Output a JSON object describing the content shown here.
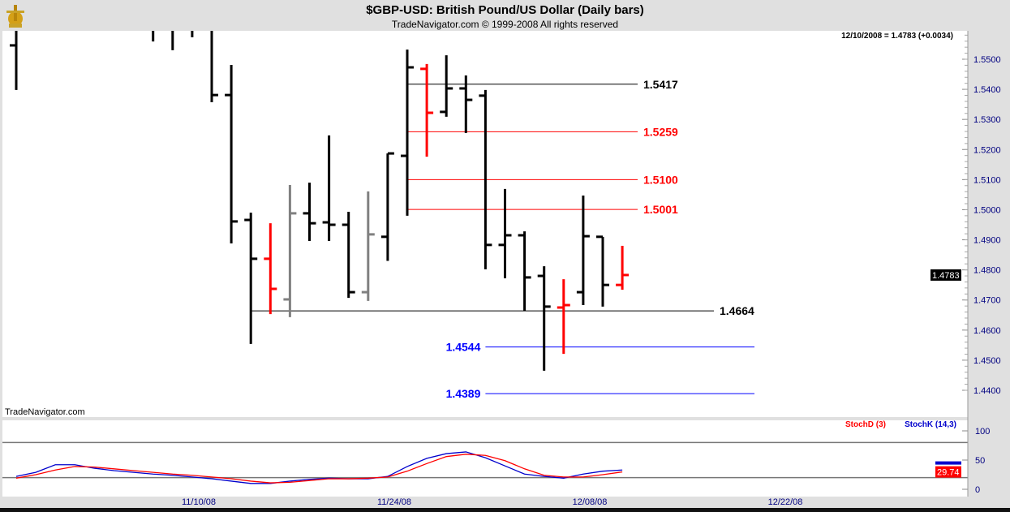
{
  "header": {
    "title": "$GBP-USD:  British Pound/US Dollar  (Daily bars)",
    "subtitle": "TradeNavigator.com © 1999-2008 All rights reserved",
    "last_quote": "12/10/2008 = 1.4783 (+0.0034)",
    "watermark": "TradeNavigator.com"
  },
  "chart_data": [
    {
      "type": "ohlc",
      "title": "$GBP-USD:  British Pound/US Dollar  (Daily bars)",
      "ylim": [
        1.435,
        1.5595
      ],
      "y_ticks": [
        "1.5500",
        "1.5400",
        "1.5300",
        "1.5200",
        "1.5100",
        "1.5000",
        "1.4900",
        "1.4800",
        "1.4700",
        "1.4600",
        "1.4500",
        "1.4400"
      ],
      "x_ticks": [
        {
          "label": "11/10/08",
          "bar": 10
        },
        {
          "label": "11/24/08",
          "bar": 20
        },
        {
          "label": "12/08/08",
          "bar": 30
        },
        {
          "label": "12/22/08",
          "bar": 40
        }
      ],
      "current_price": "1.4783",
      "colors": {
        "up": "#000000",
        "down": "#ff0000",
        "neutral": "#808080",
        "axis_text": "#000080"
      },
      "bars": [
        {
          "o": 1.5546,
          "h": 1.562,
          "l": 1.5398,
          "c": null,
          "color": "#000000"
        },
        null,
        null,
        null,
        null,
        null,
        null,
        {
          "o": null,
          "h": 1.562,
          "l": 1.5559,
          "c": null,
          "color": "#000000"
        },
        {
          "o": null,
          "h": 1.562,
          "l": 1.553,
          "c": null,
          "color": "#000000"
        },
        {
          "o": null,
          "h": 1.562,
          "l": 1.5573,
          "c": null,
          "color": "#000000"
        },
        {
          "o": null,
          "h": 1.562,
          "l": 1.5357,
          "c": 1.5381,
          "color": "#000000"
        },
        {
          "o": 1.5381,
          "h": 1.5481,
          "l": 1.4888,
          "c": 1.4961,
          "color": "#000000"
        },
        {
          "o": 1.4966,
          "h": 1.499,
          "l": 1.4554,
          "c": 1.4837,
          "color": "#000000"
        },
        {
          "o": 1.4837,
          "h": 1.4955,
          "l": 1.4653,
          "c": 1.4737,
          "color": "#ff0000"
        },
        {
          "o": 1.4702,
          "h": 1.5082,
          "l": 1.4643,
          "c": 1.4988,
          "color": "#808080"
        },
        {
          "o": 1.4988,
          "h": 1.509,
          "l": 1.4896,
          "c": 1.4955,
          "color": "#000000"
        },
        {
          "o": 1.4958,
          "h": 1.5247,
          "l": 1.4896,
          "c": 1.495,
          "color": "#000000"
        },
        {
          "o": 1.495,
          "h": 1.4993,
          "l": 1.4707,
          "c": 1.4726,
          "color": "#000000"
        },
        {
          "o": 1.4726,
          "h": 1.5061,
          "l": 1.4697,
          "c": 1.4918,
          "color": "#808080"
        },
        {
          "o": 1.491,
          "h": 1.5187,
          "l": 1.483,
          "c": 1.5187,
          "color": "#000000"
        },
        {
          "o": 1.5179,
          "h": 1.5532,
          "l": 1.498,
          "c": 1.5473,
          "color": "#000000"
        },
        {
          "o": 1.5468,
          "h": 1.5484,
          "l": 1.5176,
          "c": 1.5322,
          "color": "#ff0000"
        },
        {
          "o": 1.5325,
          "h": 1.5513,
          "l": 1.5309,
          "c": 1.5403,
          "color": "#000000"
        },
        {
          "o": 1.5403,
          "h": 1.5446,
          "l": 1.5255,
          "c": 1.5365,
          "color": "#000000"
        },
        {
          "o": 1.5379,
          "h": 1.5398,
          "l": 1.4802,
          "c": 1.4883,
          "color": "#000000"
        },
        {
          "o": 1.4883,
          "h": 1.5069,
          "l": 1.4772,
          "c": 1.4915,
          "color": "#000000"
        },
        {
          "o": 1.4915,
          "h": 1.4928,
          "l": 1.4664,
          "c": 1.4775,
          "color": "#000000"
        },
        {
          "o": 1.478,
          "h": 1.4812,
          "l": 1.4465,
          "c": 1.4678,
          "color": "#000000"
        },
        {
          "o": 1.4675,
          "h": 1.4769,
          "l": 1.4521,
          "c": 1.4683,
          "color": "#ff0000"
        },
        {
          "o": 1.4726,
          "h": 1.5047,
          "l": 1.4683,
          "c": 1.4912,
          "color": "#000000"
        },
        {
          "o": 1.491,
          "h": 1.491,
          "l": 1.4678,
          "c": 1.475,
          "color": "#000000"
        },
        {
          "o": 1.475,
          "h": 1.488,
          "l": 1.4734,
          "c": 1.4783,
          "color": "#ff0000"
        }
      ],
      "levels": [
        {
          "value": 1.5417,
          "label": "1.5417",
          "color": "#000000",
          "from_bar": 20,
          "label_side": "right"
        },
        {
          "value": 1.5259,
          "label": "1.5259",
          "color": "#ff0000",
          "from_bar": 20,
          "label_side": "right"
        },
        {
          "value": 1.51,
          "label": "1.5100",
          "color": "#ff0000",
          "from_bar": 20,
          "label_side": "right"
        },
        {
          "value": 1.5001,
          "label": "1.5001",
          "color": "#ff0000",
          "from_bar": 20,
          "label_side": "right"
        },
        {
          "value": 1.4664,
          "label": "1.4664",
          "color": "#000000",
          "from_bar": 12,
          "label_side": "right"
        },
        {
          "value": 1.4544,
          "label": "1.4544",
          "color": "#0000ff",
          "from_bar": 24,
          "label_side": "left"
        },
        {
          "value": 1.4389,
          "label": "1.4389",
          "color": "#0000ff",
          "from_bar": 24,
          "label_side": "left"
        }
      ]
    },
    {
      "type": "line",
      "ylim": [
        0,
        115
      ],
      "y_ticks": [
        "100",
        "50",
        "0"
      ],
      "reference_lines": [
        80,
        20
      ],
      "legend": [
        {
          "name": "StochD (3)",
          "color": "#ff0000"
        },
        {
          "name": "StochK (14,3)",
          "color": "#0000cc"
        }
      ],
      "current_value": "29.74",
      "series": [
        {
          "name": "StochK (14,3)",
          "color": "#0000cc",
          "values": [
            22,
            29,
            42,
            42,
            36,
            32,
            29,
            26,
            24,
            21,
            18,
            14,
            10,
            10,
            14,
            17,
            19,
            18,
            18,
            22,
            39,
            53,
            61,
            64,
            54,
            40,
            26,
            22,
            19,
            26,
            31,
            33
          ]
        },
        {
          "name": "StochD (3)",
          "color": "#ff0000",
          "values": [
            19,
            25,
            33,
            39,
            38,
            35,
            32,
            29,
            26,
            24,
            21,
            18,
            14,
            11,
            12,
            15,
            18,
            18,
            19,
            21,
            31,
            44,
            56,
            60,
            58,
            49,
            35,
            24,
            21,
            21,
            25,
            29.74
          ]
        }
      ]
    }
  ]
}
